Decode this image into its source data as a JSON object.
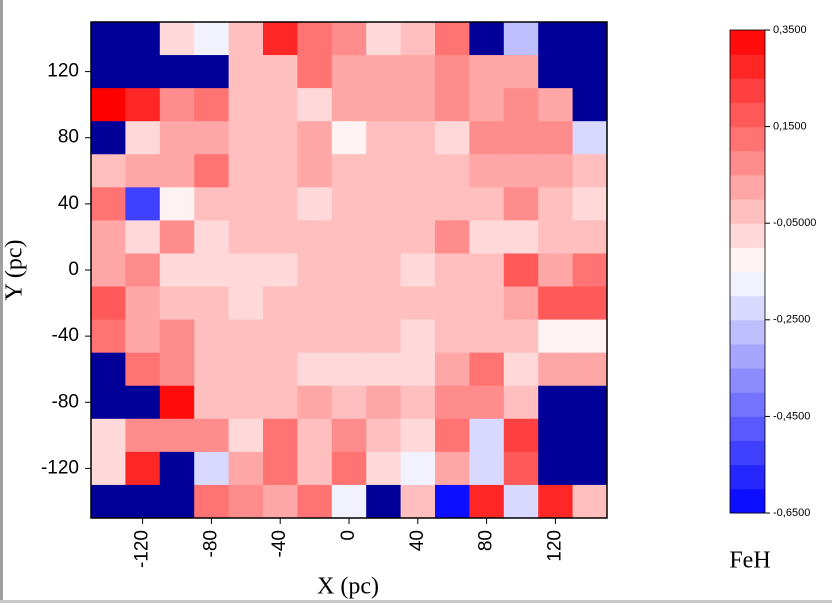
{
  "chart_data": {
    "type": "heatmap",
    "xlabel": "X (pc)",
    "ylabel": "Y (pc)",
    "x": [
      -140,
      -120,
      -100,
      -80,
      -60,
      -40,
      -20,
      0,
      20,
      40,
      60,
      80,
      100,
      120,
      140
    ],
    "y": [
      140,
      120,
      100,
      80,
      60,
      40,
      20,
      0,
      -20,
      -40,
      -60,
      -80,
      -100,
      -120,
      -140
    ],
    "xlim": [
      -150,
      150
    ],
    "ylim": [
      -150,
      150
    ],
    "xticks": [
      -120,
      -80,
      -40,
      0,
      40,
      80,
      120
    ],
    "yticks": [
      120,
      80,
      40,
      0,
      -40,
      -80,
      -120
    ],
    "values": [
      [
        null,
        null,
        -0.1,
        -0.17,
        -0.05,
        0.25,
        0.1,
        0.05,
        -0.08,
        -0.05,
        0.1,
        null,
        -0.3,
        null,
        null
      ],
      [
        null,
        null,
        null,
        null,
        -0.05,
        -0.05,
        0.12,
        0.0,
        0.02,
        0.0,
        0.07,
        0.02,
        0.02,
        null,
        null
      ],
      [
        0.35,
        0.28,
        0.05,
        0.1,
        -0.05,
        -0.05,
        -0.1,
        0.0,
        0.02,
        0.0,
        0.07,
        0.02,
        0.07,
        0.03,
        null
      ],
      [
        null,
        -0.07,
        0.0,
        0.03,
        -0.02,
        -0.05,
        0.02,
        -0.12,
        -0.05,
        -0.05,
        -0.08,
        0.08,
        0.05,
        0.05,
        -0.25
      ],
      [
        -0.05,
        0.0,
        0.0,
        0.1,
        -0.02,
        -0.05,
        0.0,
        -0.05,
        -0.05,
        -0.02,
        -0.02,
        0.03,
        0.0,
        0.03,
        -0.05
      ],
      [
        0.1,
        -0.55,
        -0.12,
        -0.05,
        -0.02,
        -0.05,
        -0.08,
        -0.02,
        -0.05,
        -0.02,
        -0.05,
        -0.02,
        0.08,
        -0.05,
        -0.1
      ],
      [
        0.0,
        -0.08,
        0.07,
        -0.1,
        -0.05,
        -0.05,
        -0.02,
        -0.05,
        -0.05,
        -0.05,
        0.07,
        -0.07,
        -0.07,
        -0.05,
        -0.05
      ],
      [
        0.0,
        0.05,
        -0.1,
        -0.07,
        -0.07,
        -0.07,
        -0.02,
        -0.05,
        -0.02,
        -0.07,
        -0.05,
        -0.05,
        0.15,
        0.0,
        0.1
      ],
      [
        0.18,
        0.0,
        -0.05,
        -0.02,
        -0.08,
        -0.05,
        -0.05,
        -0.05,
        -0.02,
        -0.02,
        -0.02,
        -0.05,
        0.03,
        0.15,
        0.18
      ],
      [
        0.1,
        0.03,
        0.07,
        -0.05,
        -0.05,
        -0.05,
        -0.05,
        -0.05,
        -0.02,
        -0.1,
        -0.05,
        -0.02,
        -0.05,
        -0.15,
        -0.15
      ],
      [
        null,
        0.1,
        0.07,
        -0.05,
        -0.05,
        -0.05,
        -0.08,
        -0.08,
        -0.1,
        -0.07,
        0.03,
        0.12,
        -0.08,
        0.0,
        0.0
      ],
      [
        null,
        null,
        0.33,
        -0.05,
        -0.05,
        -0.02,
        0.02,
        -0.05,
        0.02,
        -0.05,
        0.07,
        0.07,
        -0.05,
        null,
        null
      ],
      [
        -0.1,
        0.07,
        0.07,
        0.05,
        -0.07,
        0.12,
        -0.05,
        0.05,
        -0.05,
        -0.1,
        0.12,
        -0.25,
        0.2,
        null,
        null
      ],
      [
        -0.08,
        0.28,
        null,
        -0.25,
        0.03,
        0.1,
        -0.05,
        0.1,
        -0.1,
        -0.18,
        0.0,
        -0.23,
        0.15,
        null,
        null
      ],
      [
        null,
        null,
        null,
        0.12,
        0.08,
        0.0,
        0.12,
        -0.2,
        null,
        -0.05,
        -0.65,
        0.27,
        -0.25,
        0.27,
        -0.05
      ]
    ],
    "missing_color": "#000099",
    "colormap": [
      {
        "value": -0.65,
        "color": "#0000ff"
      },
      {
        "value": -0.15,
        "color": "#ffffff"
      },
      {
        "value": 0.35,
        "color": "#ff0000"
      }
    ],
    "color_step": 0.05,
    "colorbar": {
      "label": "FeH",
      "lim": [
        -0.65,
        0.35
      ],
      "ticks": [
        {
          "value": 0.35,
          "label": "0,3500"
        },
        {
          "value": 0.15,
          "label": "0,1500"
        },
        {
          "value": -0.05,
          "label": "-0,05000"
        },
        {
          "value": -0.25,
          "label": "-0,2500"
        },
        {
          "value": -0.45,
          "label": "-0,4500"
        },
        {
          "value": -0.65,
          "label": "-0,6500"
        }
      ]
    }
  }
}
